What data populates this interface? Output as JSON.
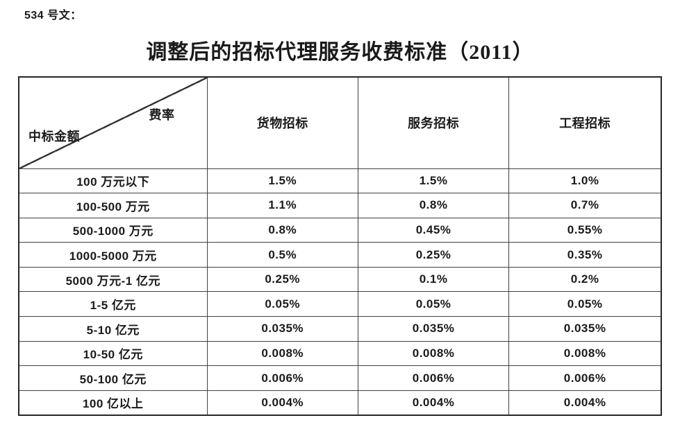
{
  "doc": {
    "ref_label": "534 号文：",
    "title": "调整后的招标代理服务收费标准（2011）"
  },
  "table": {
    "corner": {
      "top_right": "费率",
      "bottom_left": "中标金额"
    },
    "columns": [
      "货物招标",
      "服务招标",
      "工程招标"
    ],
    "rows": [
      {
        "label": "100 万元以下",
        "values": [
          "1.5%",
          "1.5%",
          "1.0%"
        ]
      },
      {
        "label": "100-500 万元",
        "values": [
          "1.1%",
          "0.8%",
          "0.7%"
        ]
      },
      {
        "label": "500-1000 万元",
        "values": [
          "0.8%",
          "0.45%",
          "0.55%"
        ]
      },
      {
        "label": "1000-5000 万元",
        "values": [
          "0.5%",
          "0.25%",
          "0.35%"
        ]
      },
      {
        "label": "5000 万元-1 亿元",
        "values": [
          "0.25%",
          "0.1%",
          "0.2%"
        ]
      },
      {
        "label": "1-5 亿元",
        "values": [
          "0.05%",
          "0.05%",
          "0.05%"
        ]
      },
      {
        "label": "5-10 亿元",
        "values": [
          "0.035%",
          "0.035%",
          "0.035%"
        ]
      },
      {
        "label": "10-50 亿元",
        "values": [
          "0.008%",
          "0.008%",
          "0.008%"
        ]
      },
      {
        "label": "50-100 亿元",
        "values": [
          "0.006%",
          "0.006%",
          "0.006%"
        ]
      },
      {
        "label": "100 亿以上",
        "values": [
          "0.004%",
          "0.004%",
          "0.004%"
        ]
      }
    ]
  },
  "colors": {
    "text": "#1a1a1a",
    "outer_border": "#262626",
    "inner_border": "#404040",
    "background": "#ffffff"
  }
}
